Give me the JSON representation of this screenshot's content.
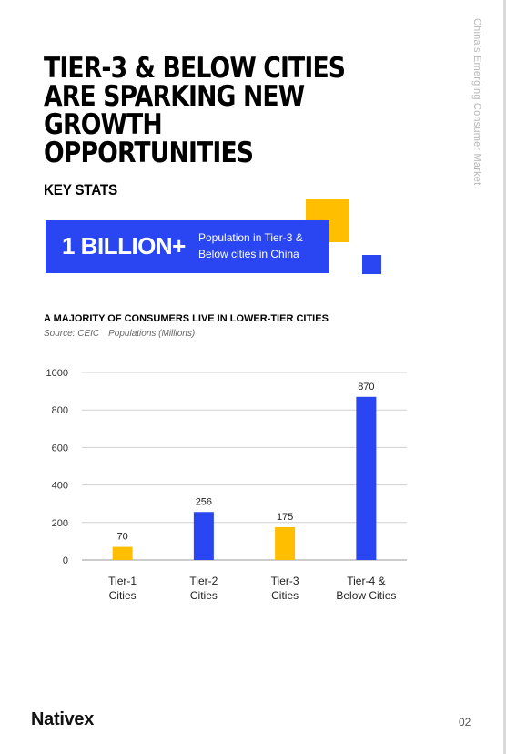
{
  "side_label": "China's Emerging Consumer Market",
  "title": "TIER-3 & BELOW CITIES ARE SPARKING NEW GROWTH OPPORTUNITIES",
  "key_stats_heading": "KEY STATS",
  "stat": {
    "value": "1 BILLION+",
    "caption": "Population in Tier-3 & Below cities in China"
  },
  "colors": {
    "blue": "#2946f2",
    "yellow": "#ffbf00"
  },
  "chart_data": {
    "type": "bar",
    "title": "A MAJORITY OF CONSUMERS LIVE IN LOWER-TIER CITIES",
    "source": "Source: CEIC",
    "unit_note": "Populations (Millions)",
    "categories": [
      [
        "Tier-1",
        "Cities"
      ],
      [
        "Tier-2",
        "Cities"
      ],
      [
        "Tier-3",
        "Cities"
      ],
      [
        "Tier-4 &",
        "Below Cities"
      ]
    ],
    "values": [
      70,
      256,
      175,
      870
    ],
    "data_labels": [
      "70",
      "256",
      "175",
      "870"
    ],
    "bar_colors": [
      "#ffbf00",
      "#2946f2",
      "#ffbf00",
      "#2946f2"
    ],
    "ylim": [
      0,
      1000
    ],
    "yticks": [
      0,
      200,
      400,
      600,
      800,
      1000
    ],
    "grid": true,
    "legend": "none"
  },
  "footer": {
    "logo": "Nativex",
    "page_number": "02"
  }
}
